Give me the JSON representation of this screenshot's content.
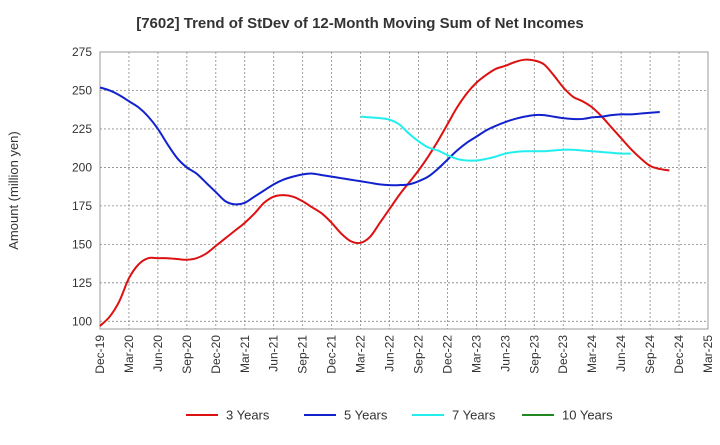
{
  "chart_data": {
    "type": "line",
    "title": "[7602]  Trend of StDev of 12-Month Moving Sum of Net Incomes",
    "xlabel": "",
    "ylabel": "Amount (million yen)",
    "ylim": [
      95,
      275
    ],
    "yticks": [
      100,
      125,
      150,
      175,
      200,
      225,
      250,
      275
    ],
    "x_start": "Dec-19",
    "xticks": [
      "Dec-19",
      "Mar-20",
      "Jun-20",
      "Sep-20",
      "Dec-20",
      "Mar-21",
      "Jun-21",
      "Sep-21",
      "Dec-21",
      "Mar-22",
      "Jun-22",
      "Sep-22",
      "Dec-22",
      "Mar-23",
      "Jun-23",
      "Sep-23",
      "Dec-23",
      "Mar-24",
      "Jun-24",
      "Sep-24",
      "Dec-24",
      "Mar-25"
    ],
    "grid": true,
    "legend_position": "bottom",
    "series": [
      {
        "name": "3 Years",
        "color": "#dd1111",
        "points": [
          [
            "Dec-19",
            97
          ],
          [
            "Jan-20",
            103
          ],
          [
            "Feb-20",
            113
          ],
          [
            "Mar-20",
            128
          ],
          [
            "Apr-20",
            137
          ],
          [
            "May-20",
            141
          ],
          [
            "Jun-20",
            141
          ],
          [
            "Jul-20",
            141
          ],
          [
            "Aug-20",
            140.5
          ],
          [
            "Sep-20",
            140
          ],
          [
            "Oct-20",
            141
          ],
          [
            "Nov-20",
            144
          ],
          [
            "Dec-20",
            149
          ],
          [
            "Jan-21",
            154
          ],
          [
            "Feb-21",
            159
          ],
          [
            "Mar-21",
            164
          ],
          [
            "Apr-21",
            170
          ],
          [
            "May-21",
            177
          ],
          [
            "Jun-21",
            181
          ],
          [
            "Jul-21",
            182
          ],
          [
            "Aug-21",
            181
          ],
          [
            "Sep-21",
            178
          ],
          [
            "Oct-21",
            174
          ],
          [
            "Nov-21",
            170
          ],
          [
            "Dec-21",
            164
          ],
          [
            "Jan-22",
            157
          ],
          [
            "Feb-22",
            152
          ],
          [
            "Mar-22",
            151
          ],
          [
            "Apr-22",
            155
          ],
          [
            "May-22",
            164
          ],
          [
            "Jun-22",
            173
          ],
          [
            "Jul-22",
            182
          ],
          [
            "Aug-22",
            190
          ],
          [
            "Sep-22",
            198
          ],
          [
            "Oct-22",
            207
          ],
          [
            "Nov-22",
            217
          ],
          [
            "Dec-22",
            228
          ],
          [
            "Jan-23",
            239
          ],
          [
            "Feb-23",
            248
          ],
          [
            "Mar-23",
            255
          ],
          [
            "Apr-23",
            260
          ],
          [
            "May-23",
            264
          ],
          [
            "Jun-23",
            266
          ],
          [
            "Jul-23",
            268.5
          ],
          [
            "Aug-23",
            270
          ],
          [
            "Sep-23",
            269.5
          ],
          [
            "Oct-23",
            267
          ],
          [
            "Nov-23",
            260
          ],
          [
            "Dec-23",
            252
          ],
          [
            "Jan-24",
            246
          ],
          [
            "Feb-24",
            243
          ],
          [
            "Mar-24",
            239
          ],
          [
            "Apr-24",
            233
          ],
          [
            "May-24",
            226
          ],
          [
            "Jun-24",
            219
          ],
          [
            "Jul-24",
            212
          ],
          [
            "Aug-24",
            206
          ],
          [
            "Sep-24",
            201
          ],
          [
            "Oct-24",
            199
          ],
          [
            "Nov-24",
            198
          ]
        ]
      },
      {
        "name": "5 Years",
        "color": "#1122cc",
        "points": [
          [
            "Dec-19",
            252
          ],
          [
            "Jan-20",
            250
          ],
          [
            "Feb-20",
            247
          ],
          [
            "Mar-20",
            243
          ],
          [
            "Apr-20",
            239
          ],
          [
            "May-20",
            233
          ],
          [
            "Jun-20",
            225
          ],
          [
            "Jul-20",
            215
          ],
          [
            "Aug-20",
            206
          ],
          [
            "Sep-20",
            200
          ],
          [
            "Oct-20",
            196
          ],
          [
            "Nov-20",
            190
          ],
          [
            "Dec-20",
            184
          ],
          [
            "Jan-21",
            178
          ],
          [
            "Feb-21",
            176
          ],
          [
            "Mar-21",
            177
          ],
          [
            "Apr-21",
            181
          ],
          [
            "May-21",
            185
          ],
          [
            "Jun-21",
            189
          ],
          [
            "Jul-21",
            192
          ],
          [
            "Aug-21",
            194
          ],
          [
            "Sep-21",
            195.5
          ],
          [
            "Oct-21",
            196
          ],
          [
            "Nov-21",
            195
          ],
          [
            "Dec-21",
            194
          ],
          [
            "Jan-22",
            193
          ],
          [
            "Feb-22",
            192
          ],
          [
            "Mar-22",
            191
          ],
          [
            "Apr-22",
            190
          ],
          [
            "May-22",
            189
          ],
          [
            "Jun-22",
            188.5
          ],
          [
            "Jul-22",
            188.5
          ],
          [
            "Aug-22",
            189
          ],
          [
            "Sep-22",
            191
          ],
          [
            "Oct-22",
            194
          ],
          [
            "Nov-22",
            199
          ],
          [
            "Dec-22",
            205
          ],
          [
            "Jan-23",
            211
          ],
          [
            "Feb-23",
            216
          ],
          [
            "Mar-23",
            220
          ],
          [
            "Apr-23",
            224
          ],
          [
            "May-23",
            227
          ],
          [
            "Jun-23",
            229.5
          ],
          [
            "Jul-23",
            231.5
          ],
          [
            "Aug-23",
            233
          ],
          [
            "Sep-23",
            234
          ],
          [
            "Oct-23",
            234
          ],
          [
            "Nov-23",
            233
          ],
          [
            "Dec-23",
            232
          ],
          [
            "Jan-24",
            231.5
          ],
          [
            "Feb-24",
            231.5
          ],
          [
            "Mar-24",
            232.5
          ],
          [
            "Apr-24",
            233
          ],
          [
            "May-24",
            234
          ],
          [
            "Jun-24",
            234.5
          ],
          [
            "Jul-24",
            234.5
          ],
          [
            "Aug-24",
            235
          ],
          [
            "Sep-24",
            235.5
          ],
          [
            "Oct-24",
            236
          ]
        ]
      },
      {
        "name": "7 Years",
        "color": "#22eeee",
        "points": [
          [
            "Mar-22",
            233
          ],
          [
            "Apr-22",
            232.5
          ],
          [
            "May-22",
            232
          ],
          [
            "Jun-22",
            231
          ],
          [
            "Jul-22",
            228
          ],
          [
            "Aug-22",
            222
          ],
          [
            "Sep-22",
            217
          ],
          [
            "Oct-22",
            213
          ],
          [
            "Nov-22",
            211
          ],
          [
            "Dec-22",
            208
          ],
          [
            "Jan-23",
            205.5
          ],
          [
            "Feb-23",
            204.5
          ],
          [
            "Mar-23",
            204.5
          ],
          [
            "Apr-23",
            205.5
          ],
          [
            "May-23",
            207
          ],
          [
            "Jun-23",
            209
          ],
          [
            "Jul-23",
            210
          ],
          [
            "Aug-23",
            210.5
          ],
          [
            "Sep-23",
            210.5
          ],
          [
            "Oct-23",
            210.5
          ],
          [
            "Nov-23",
            211
          ],
          [
            "Dec-23",
            211.5
          ],
          [
            "Jan-24",
            211.5
          ],
          [
            "Feb-24",
            211
          ],
          [
            "Mar-24",
            210.5
          ],
          [
            "Apr-24",
            210
          ],
          [
            "May-24",
            209.5
          ],
          [
            "Jun-24",
            209
          ],
          [
            "Jul-24",
            209
          ]
        ]
      },
      {
        "name": "10 Years",
        "color": "#228822",
        "points": []
      }
    ]
  }
}
